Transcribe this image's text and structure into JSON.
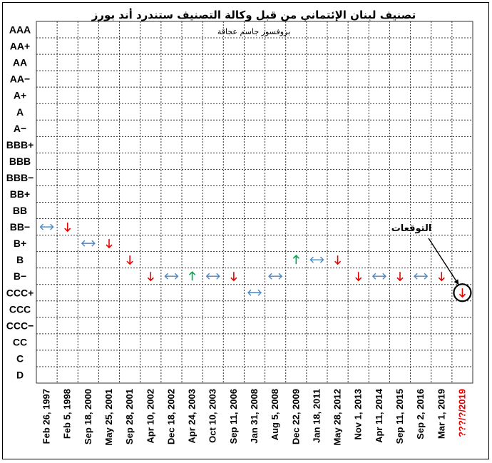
{
  "chart_data": {
    "type": "table",
    "title": "تصنيف لبنان الإئتماني من قبل وكالة التصنيف ستندرد أند بورز",
    "subtitle": "بروفسور جاسم عجاقة",
    "y_categories": [
      "AAA",
      "AA+",
      "AA",
      "AA−",
      "A+",
      "A",
      "A−",
      "BBB+",
      "BBB",
      "BBB−",
      "BB+",
      "BB",
      "BB−",
      "B+",
      "B",
      "B−",
      "CCC+",
      "CCC",
      "CCC−",
      "CC",
      "C",
      "D"
    ],
    "x_categories": [
      "Feb 26, 1997",
      "Feb 5, 1998",
      "Sep 18, 2000",
      "May 25, 2001",
      "Sep 28, 2001",
      "Apr 10, 2002",
      "Dec 18, 2002",
      "Apr 24, 2003",
      "Oct 10, 2003",
      "Sep 11, 2006",
      "Jan 31, 2008",
      "Aug 5, 2008",
      "Dec 22, 2009",
      "Jan 18, 2011",
      "May 28, 2012",
      "Nov 1, 2013",
      "Apr 11, 2014",
      "Sep 11, 2015",
      "Sep 2, 2016",
      "Mar 1, 2019",
      "???/?/2019"
    ],
    "points": [
      {
        "date": "Feb 26, 1997",
        "rating": "BB−",
        "action": "stable"
      },
      {
        "date": "Feb 5, 1998",
        "rating": "BB−",
        "action": "down"
      },
      {
        "date": "Sep 18, 2000",
        "rating": "B+",
        "action": "stable"
      },
      {
        "date": "May 25, 2001",
        "rating": "B+",
        "action": "down"
      },
      {
        "date": "Sep 28, 2001",
        "rating": "B",
        "action": "down"
      },
      {
        "date": "Apr 10, 2002",
        "rating": "B−",
        "action": "down"
      },
      {
        "date": "Dec 18, 2002",
        "rating": "B−",
        "action": "stable"
      },
      {
        "date": "Apr 24, 2003",
        "rating": "B−",
        "action": "up"
      },
      {
        "date": "Oct 10, 2003",
        "rating": "B−",
        "action": "stable"
      },
      {
        "date": "Sep 11, 2006",
        "rating": "B−",
        "action": "down"
      },
      {
        "date": "Jan 31, 2008",
        "rating": "CCC+",
        "action": "stable"
      },
      {
        "date": "Aug 5, 2008",
        "rating": "B−",
        "action": "stable"
      },
      {
        "date": "Dec 22, 2009",
        "rating": "B",
        "action": "up"
      },
      {
        "date": "Jan 18, 2011",
        "rating": "B",
        "action": "stable"
      },
      {
        "date": "May 28, 2012",
        "rating": "B",
        "action": "down"
      },
      {
        "date": "Nov 1, 2013",
        "rating": "B−",
        "action": "down"
      },
      {
        "date": "Apr 11, 2014",
        "rating": "B−",
        "action": "stable"
      },
      {
        "date": "Sep 11, 2015",
        "rating": "B−",
        "action": "down"
      },
      {
        "date": "Sep 2, 2016",
        "rating": "B−",
        "action": "stable"
      },
      {
        "date": "Mar 1, 2019",
        "rating": "B−",
        "action": "down"
      },
      {
        "date": "???/?/2019",
        "rating": "CCC+",
        "action": "down",
        "forecast": true
      }
    ],
    "annotation": "التوقعات",
    "colors": {
      "down": "#e60000",
      "up": "#00a550",
      "stable": "#4a86c5",
      "forecast_label": "#e60000",
      "grid": "#333333"
    },
    "grid": true
  }
}
